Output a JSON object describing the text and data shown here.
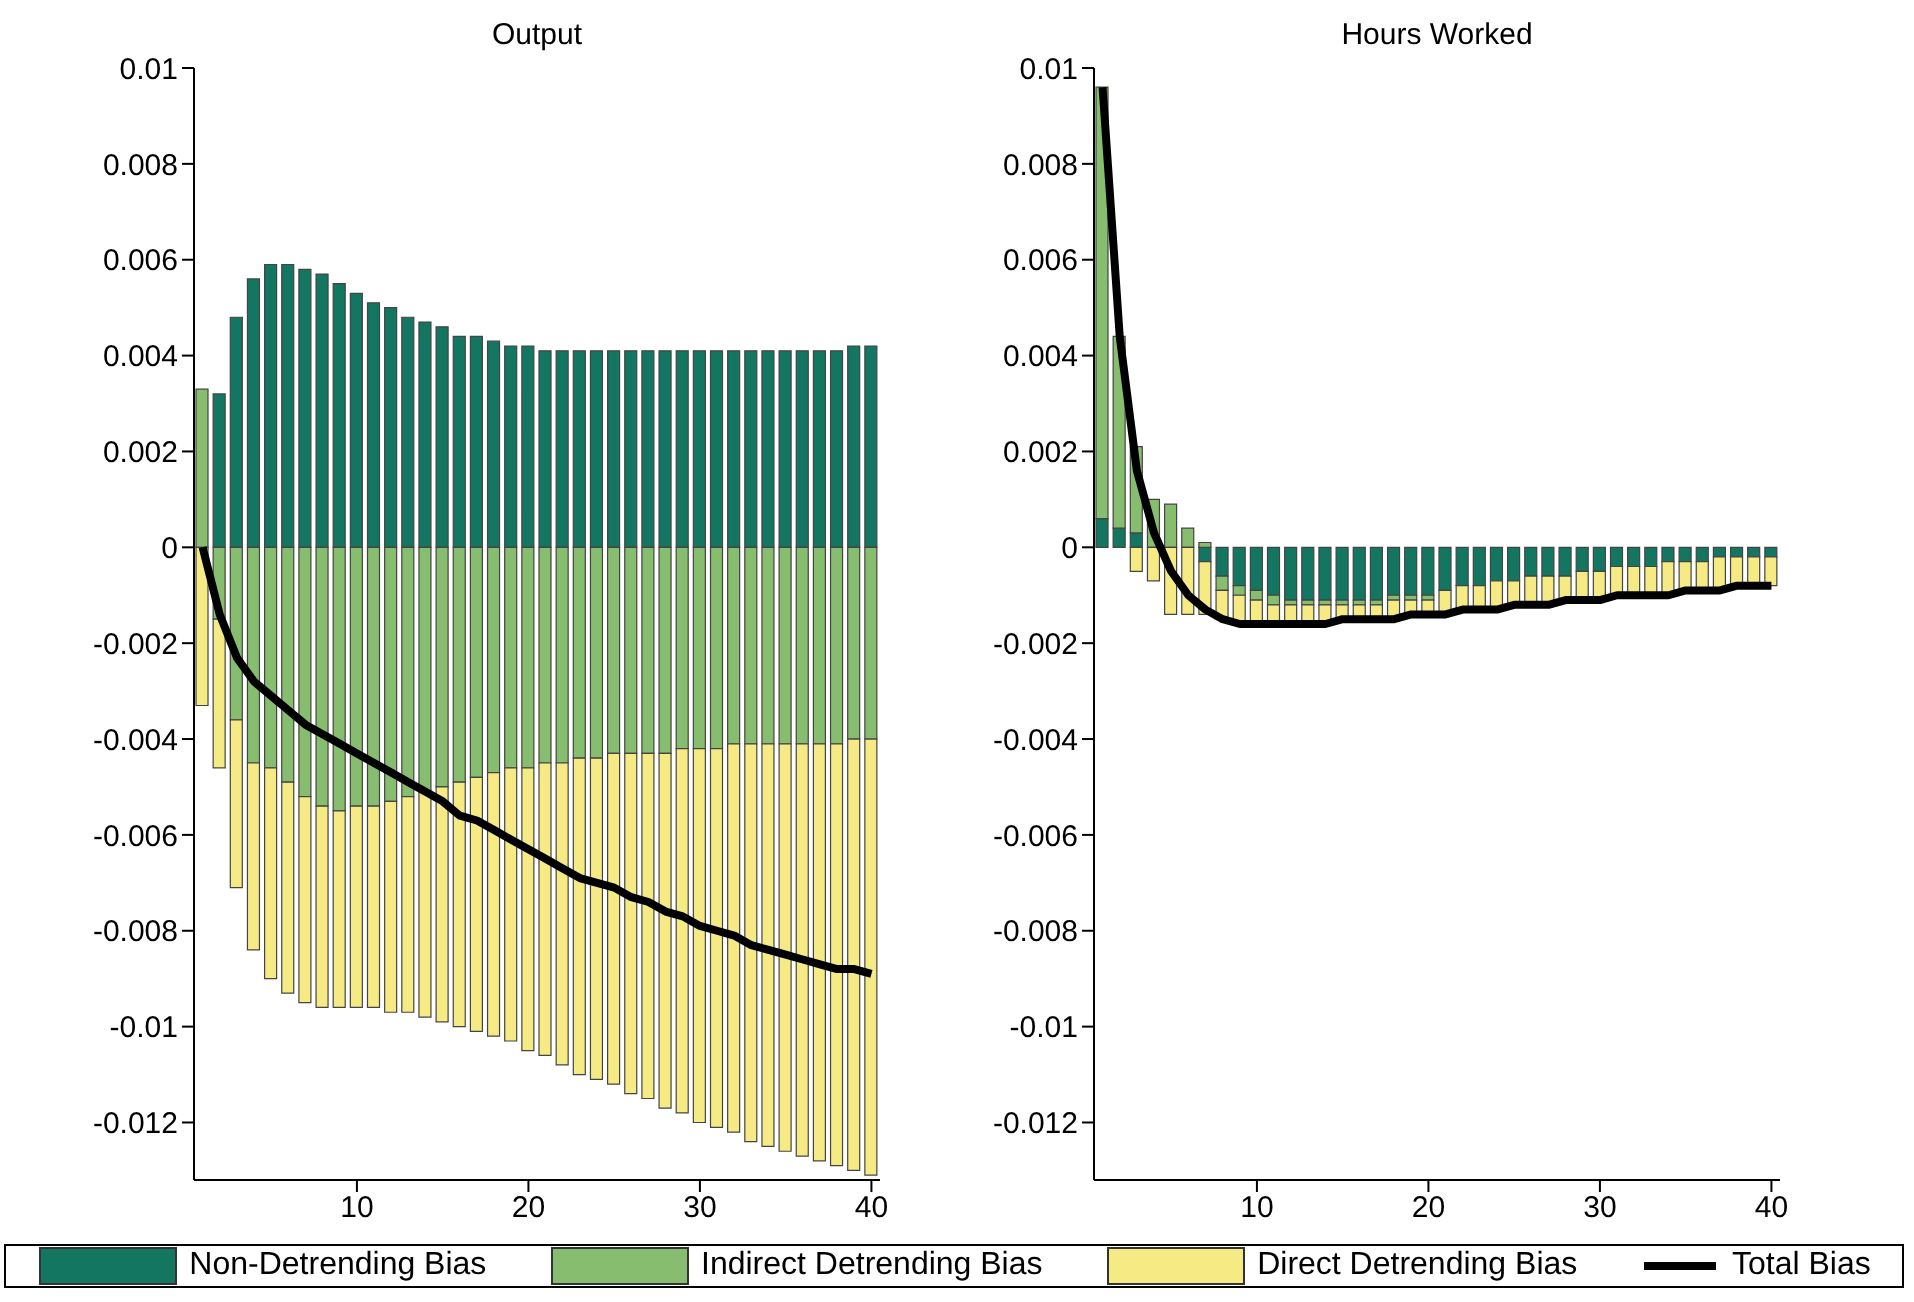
{
  "chart_data": [
    {
      "type": "bar",
      "title": "Output",
      "stacked": true,
      "legend": "bottom",
      "x": [
        1,
        2,
        3,
        4,
        5,
        6,
        7,
        8,
        9,
        10,
        11,
        12,
        13,
        14,
        15,
        16,
        17,
        18,
        19,
        20,
        21,
        22,
        23,
        24,
        25,
        26,
        27,
        28,
        29,
        30,
        31,
        32,
        33,
        34,
        35,
        36,
        37,
        38,
        39,
        40
      ],
      "xlim": [
        0.5,
        40.5
      ],
      "xticks": [
        10,
        20,
        30,
        40
      ],
      "ylim": [
        -0.0132,
        0.01
      ],
      "yticks": [
        -0.012,
        -0.01,
        -0.008,
        -0.006,
        -0.004,
        -0.002,
        0,
        0.002,
        0.004,
        0.006,
        0.008,
        0.01
      ],
      "series": [
        {
          "name": "Non-Detrending Bias",
          "color": "#137661",
          "values": [
            0,
            0.0032,
            0.0048,
            0.0056,
            0.0059,
            0.0059,
            0.0058,
            0.0057,
            0.0055,
            0.0053,
            0.0051,
            0.005,
            0.0048,
            0.0047,
            0.0046,
            0.0044,
            0.0044,
            0.0043,
            0.0042,
            0.0042,
            0.0041,
            0.0041,
            0.0041,
            0.0041,
            0.0041,
            0.0041,
            0.0041,
            0.0041,
            0.0041,
            0.0041,
            0.0041,
            0.0041,
            0.0041,
            0.0041,
            0.0041,
            0.0041,
            0.0041,
            0.0041,
            0.0042,
            0.0042
          ]
        },
        {
          "name": "Indirect Detrending Bias",
          "color": "#86bd6e",
          "values": [
            0.0033,
            -0.0015,
            -0.0036,
            -0.0045,
            -0.0046,
            -0.0049,
            -0.0052,
            -0.0054,
            -0.0055,
            -0.0054,
            -0.0054,
            -0.0053,
            -0.0052,
            -0.0051,
            -0.005,
            -0.0049,
            -0.0048,
            -0.0047,
            -0.0046,
            -0.0046,
            -0.0045,
            -0.0045,
            -0.0044,
            -0.0044,
            -0.0043,
            -0.0043,
            -0.0043,
            -0.0043,
            -0.0042,
            -0.0042,
            -0.0042,
            -0.0041,
            -0.0041,
            -0.0041,
            -0.0041,
            -0.0041,
            -0.0041,
            -0.0041,
            -0.004,
            -0.004
          ]
        },
        {
          "name": "Direct Detrending Bias",
          "color": "#f5ea84",
          "values": [
            -0.0033,
            -0.0031,
            -0.0035,
            -0.0039,
            -0.0044,
            -0.0044,
            -0.0043,
            -0.0042,
            -0.0041,
            -0.0042,
            -0.0042,
            -0.0044,
            -0.0045,
            -0.0047,
            -0.0049,
            -0.0051,
            -0.0053,
            -0.0055,
            -0.0057,
            -0.0059,
            -0.0061,
            -0.0063,
            -0.0066,
            -0.0067,
            -0.0069,
            -0.0071,
            -0.0072,
            -0.0074,
            -0.0076,
            -0.0078,
            -0.0079,
            -0.0081,
            -0.0083,
            -0.0084,
            -0.0085,
            -0.0086,
            -0.0087,
            -0.0088,
            -0.009,
            -0.0091
          ]
        },
        {
          "name": "Total Bias",
          "type": "line",
          "color": "#000000",
          "values": [
            0,
            -0.0014,
            -0.0023,
            -0.0028,
            -0.0031,
            -0.0034,
            -0.0037,
            -0.0039,
            -0.0041,
            -0.0043,
            -0.0045,
            -0.0047,
            -0.0049,
            -0.0051,
            -0.0053,
            -0.0056,
            -0.0057,
            -0.0059,
            -0.0061,
            -0.0063,
            -0.0065,
            -0.0067,
            -0.0069,
            -0.007,
            -0.0071,
            -0.0073,
            -0.0074,
            -0.0076,
            -0.0077,
            -0.0079,
            -0.008,
            -0.0081,
            -0.0083,
            -0.0084,
            -0.0085,
            -0.0086,
            -0.0087,
            -0.0088,
            -0.0088,
            -0.0089
          ]
        }
      ]
    },
    {
      "type": "bar",
      "title": "Hours Worked",
      "stacked": true,
      "x": [
        1,
        2,
        3,
        4,
        5,
        6,
        7,
        8,
        9,
        10,
        11,
        12,
        13,
        14,
        15,
        16,
        17,
        18,
        19,
        20,
        21,
        22,
        23,
        24,
        25,
        26,
        27,
        28,
        29,
        30,
        31,
        32,
        33,
        34,
        35,
        36,
        37,
        38,
        39,
        40
      ],
      "xlim": [
        0.5,
        40.5
      ],
      "xticks": [
        10,
        20,
        30,
        40
      ],
      "ylim": [
        -0.0132,
        0.01
      ],
      "yticks": [
        -0.012,
        -0.01,
        -0.008,
        -0.006,
        -0.004,
        -0.002,
        0,
        0.002,
        0.004,
        0.006,
        0.008,
        0.01
      ],
      "series": [
        {
          "color": "#137661",
          "values": [
            0.0006,
            0.0004,
            0.0003,
            0,
            0,
            0,
            -0.0003,
            -0.0006,
            -0.0008,
            -0.0009,
            -0.001,
            -0.0011,
            -0.0011,
            -0.0011,
            -0.0011,
            -0.0011,
            -0.0011,
            -0.001,
            -0.001,
            -0.001,
            -0.0009,
            -0.0008,
            -0.0008,
            -0.0007,
            -0.0007,
            -0.0006,
            -0.0006,
            -0.0006,
            -0.0005,
            -0.0005,
            -0.0004,
            -0.0004,
            -0.0004,
            -0.0003,
            -0.0003,
            -0.0003,
            -0.0002,
            -0.0002,
            -0.0002,
            -0.0002
          ]
        },
        {
          "color": "#86bd6e",
          "values": [
            0.009,
            0.004,
            0.0018,
            0.001,
            0.0009,
            0.0004,
            0.0001,
            -0.0003,
            -0.0002,
            -0.0002,
            -0.0002,
            -0.0001,
            -0.0001,
            -0.0001,
            -0.0001,
            -0.0001,
            -0.0001,
            -0.0001,
            -0.0001,
            -0.0001,
            0,
            0,
            0,
            0,
            0,
            0,
            0,
            0,
            0,
            0,
            0,
            0,
            0,
            0,
            0,
            0,
            0,
            0,
            0,
            0
          ]
        },
        {
          "color": "#f5ea84",
          "values": [
            0,
            0,
            -0.0005,
            -0.0007,
            -0.0014,
            -0.0014,
            -0.0011,
            -0.0006,
            -0.0006,
            -0.0005,
            -0.0004,
            -0.0004,
            -0.0004,
            -0.0004,
            -0.0003,
            -0.0003,
            -0.0003,
            -0.0004,
            -0.0003,
            -0.0003,
            -0.0005,
            -0.0005,
            -0.0005,
            -0.0006,
            -0.0005,
            -0.0006,
            -0.0006,
            -0.0005,
            -0.0006,
            -0.0006,
            -0.0006,
            -0.0006,
            -0.0006,
            -0.0007,
            -0.0006,
            -0.0006,
            -0.0007,
            -0.0006,
            -0.0006,
            -0.0006
          ]
        },
        {
          "type": "line",
          "color": "#000000",
          "values": [
            0.0096,
            0.0044,
            0.0016,
            0.0003,
            -0.0005,
            -0.001,
            -0.0013,
            -0.0015,
            -0.0016,
            -0.0016,
            -0.0016,
            -0.0016,
            -0.0016,
            -0.0016,
            -0.0015,
            -0.0015,
            -0.0015,
            -0.0015,
            -0.0014,
            -0.0014,
            -0.0014,
            -0.0013,
            -0.0013,
            -0.0013,
            -0.0012,
            -0.0012,
            -0.0012,
            -0.0011,
            -0.0011,
            -0.0011,
            -0.001,
            -0.001,
            -0.001,
            -0.001,
            -0.0009,
            -0.0009,
            -0.0009,
            -0.0008,
            -0.0008,
            -0.0008
          ]
        }
      ]
    }
  ]
}
